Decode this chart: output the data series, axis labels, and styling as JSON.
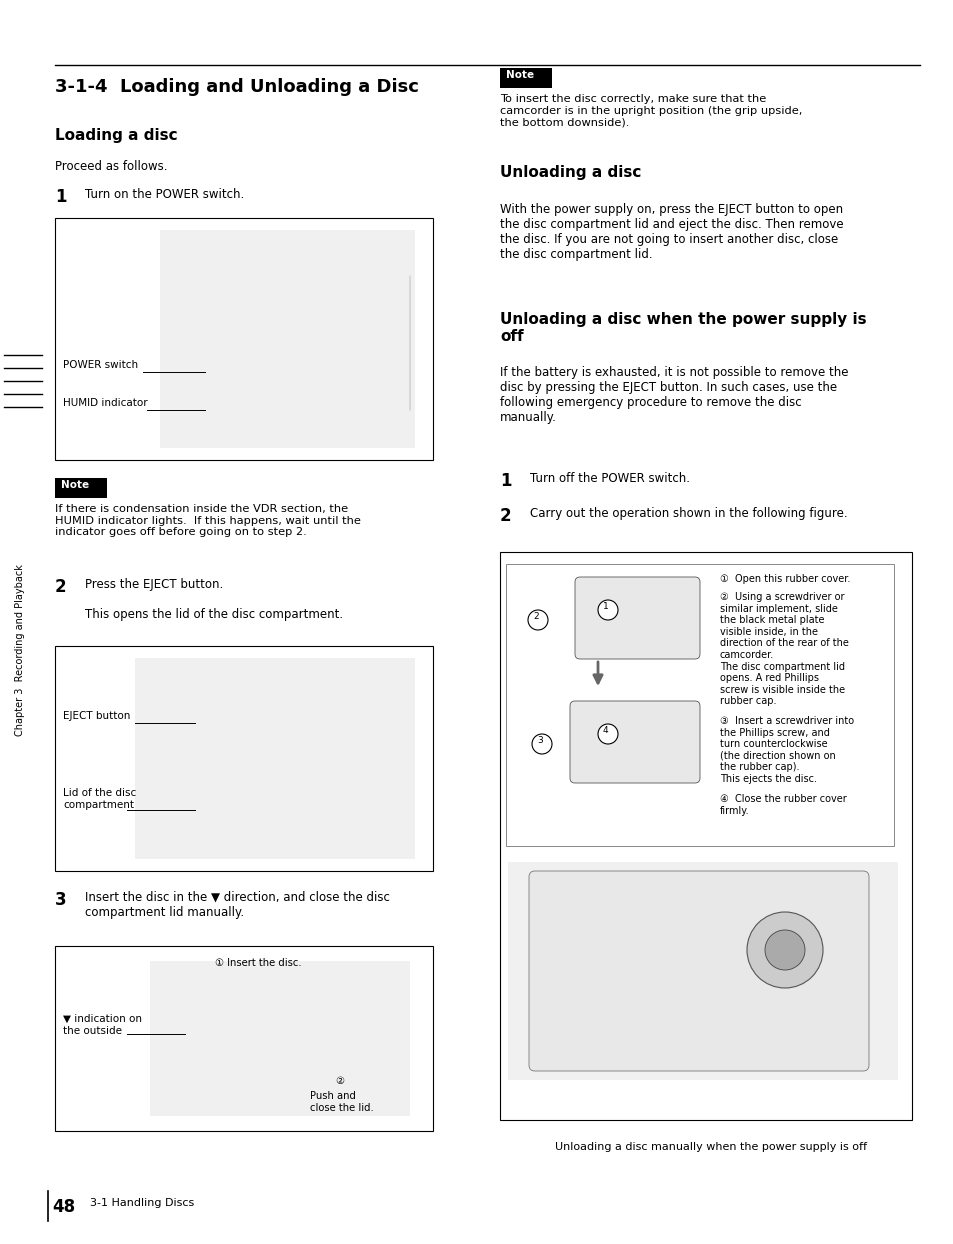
{
  "bg_color": "#ffffff",
  "page_width": 9.54,
  "page_height": 12.44,
  "title": "3-1-4  Loading and Unloading a Disc",
  "section1_head": "Loading a disc",
  "section1_intro": "Proceed as follows.",
  "step1_left_num": "1",
  "step1_left_text": "Turn on the POWER switch.",
  "note1_text": "If there is condensation inside the VDR section, the\nHUMID indicator lights.  If this happens, wait until the\nindicator goes off before going on to step 2.",
  "step2_left_num": "2",
  "step2_left_text": "Press the EJECT button.",
  "step2_sub": "This opens the lid of the disc compartment.",
  "step3_left_num": "3",
  "step3_left_text": "Insert the disc in the ▼ direction, and close the disc\ncompartment lid manually.",
  "section2_head": "Unloading a disc",
  "section2_text": "With the power supply on, press the EJECT button to open\nthe disc compartment lid and eject the disc. Then remove\nthe disc. If you are not going to insert another disc, close\nthe disc compartment lid.",
  "section3_head": "Unloading a disc when the power supply is\noff",
  "section3_text": "If the battery is exhausted, it is not possible to remove the\ndisc by pressing the EJECT button. In such cases, use the\nfollowing emergency procedure to remove the disc\nmanually.",
  "step1_right_num": "1",
  "step1_right_text": "Turn off the POWER switch.",
  "step2_right_num": "2",
  "step2_right_text": "Carry out the operation shown in the following figure.",
  "note_right_text": "To insert the disc correctly, make sure that the\ncamcorder is in the upright position (the grip upside,\nthe bottom downside).",
  "fig4_ann1": "①  Open this rubber cover.",
  "fig4_ann2": "②  Using a screwdriver or\nsimilar implement, slide\nthe black metal plate\nvisible inside, in the\ndirection of the rear of the\ncamcorder.\nThe disc compartment lid\nopens. A red Phillips\nscrew is visible inside the\nrubber cap.",
  "fig4_ann3": "③  Insert a screwdriver into\nthe Phillips screw, and\nturn counterclockwise\n(the direction shown on\nthe rubber cap).\nThis ejects the disc.",
  "fig4_ann4": "④  Close the rubber cover\nfirmly.",
  "fig4_caption": "Unloading a disc manually when the power supply is off",
  "page_number": "48",
  "page_footer": "3-1 Handling Discs",
  "sidebar_text": "Chapter 3  Recording and Playback",
  "fig1_label1": "POWER switch",
  "fig1_label2": "HUMID indicator",
  "fig2_label1": "EJECT button",
  "fig2_label2": "Lid of the disc\ncompartment",
  "fig3_label1": "▼ indication on\nthe outside",
  "fig3_ann1": "① Insert the disc.",
  "fig3_ann2": "②\nPush and\nclose the lid."
}
